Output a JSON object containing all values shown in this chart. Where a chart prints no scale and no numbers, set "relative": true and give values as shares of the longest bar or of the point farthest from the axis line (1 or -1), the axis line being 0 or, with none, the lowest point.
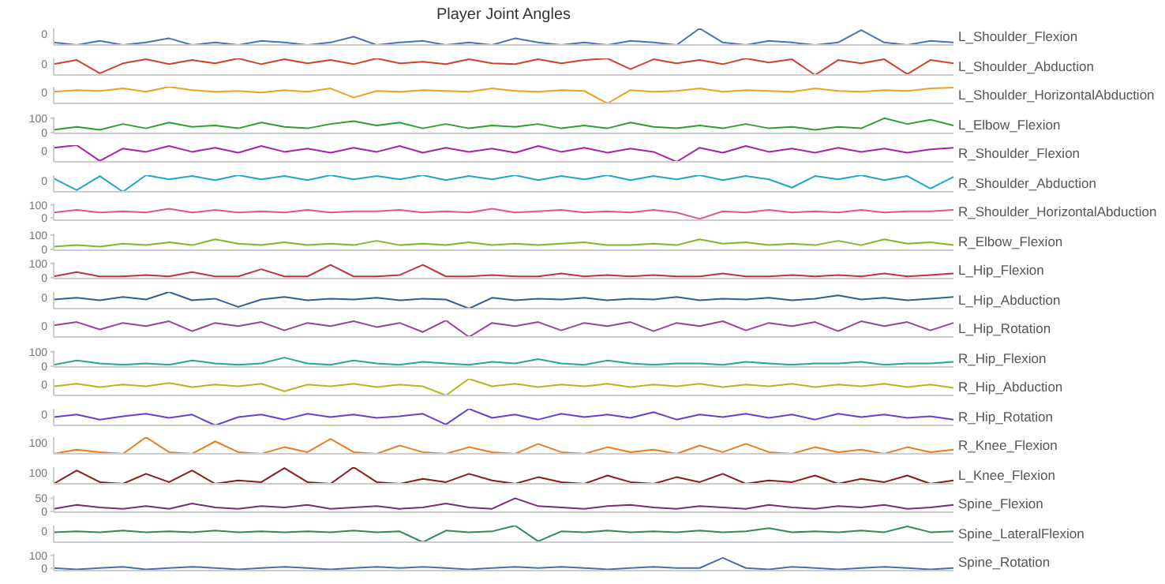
{
  "chart_data": [
    {
      "type": "line",
      "title": "Player Joint Angles",
      "relative": true,
      "annotations": [
        "0"
      ],
      "categories": [
        null,
        null,
        null,
        null,
        null,
        null,
        null,
        null,
        null,
        null,
        null,
        null,
        null,
        null,
        null,
        null,
        null,
        null,
        null,
        null,
        null,
        null,
        null,
        null,
        null,
        null,
        null,
        null,
        null,
        null,
        null,
        null,
        null,
        null,
        null,
        null,
        null,
        null,
        null,
        null
      ],
      "series": [
        {
          "name": "L_Shoulder_Flexion",
          "color": "#4a72b8",
          "values": [
            0.15,
            0,
            0.25,
            0,
            0.15,
            0.4,
            0,
            0.15,
            0,
            0.25,
            0.15,
            0,
            0.15,
            0.5,
            0,
            0.15,
            0.25,
            0,
            0.15,
            0,
            0.4,
            0.15,
            0,
            0.15,
            0,
            0.25,
            0.15,
            0,
            1,
            0.15,
            0,
            0.25,
            0.15,
            0,
            0.15,
            0.9,
            0.15,
            0,
            0.25,
            0.15
          ]
        }
      ]
    },
    {
      "type": "line",
      "relative": true,
      "annotations": [
        "0"
      ],
      "categories": [
        null,
        null,
        null,
        null,
        null,
        null,
        null,
        null,
        null,
        null,
        null,
        null,
        null,
        null,
        null,
        null,
        null,
        null,
        null,
        null,
        null,
        null,
        null,
        null,
        null,
        null,
        null,
        null,
        null,
        null,
        null,
        null,
        null,
        null,
        null,
        null,
        null,
        null,
        null,
        null
      ],
      "series": [
        {
          "name": "L_Shoulder_Abduction",
          "color": "#d0432b",
          "values": [
            0.65,
            0.9,
            0.1,
            0.7,
            0.95,
            0.65,
            0.9,
            0.7,
            1,
            0.65,
            0.95,
            0.7,
            0.9,
            0.65,
            1,
            0.7,
            0.8,
            0.65,
            0.95,
            0.7,
            0.65,
            0.95,
            0.7,
            0.9,
            1,
            0.35,
            0.95,
            0.7,
            0.9,
            0.65,
            1,
            0.75,
            0.95,
            0,
            0.9,
            0.7,
            0.95,
            0.05,
            0.9,
            0.7
          ]
        }
      ]
    },
    {
      "type": "line",
      "relative": true,
      "annotations": [
        "0"
      ],
      "categories": [
        null,
        null,
        null,
        null,
        null,
        null,
        null,
        null,
        null,
        null,
        null,
        null,
        null,
        null,
        null,
        null,
        null,
        null,
        null,
        null,
        null,
        null,
        null,
        null,
        null,
        null,
        null,
        null,
        null,
        null,
        null,
        null,
        null,
        null,
        null,
        null,
        null,
        null,
        null,
        null
      ],
      "series": [
        {
          "name": "L_Shoulder_HorizontalAbduction",
          "color": "#f0a020",
          "values": [
            0.7,
            0.8,
            0.75,
            0.9,
            0.7,
            1,
            0.8,
            0.7,
            0.75,
            0.65,
            0.8,
            0.7,
            0.9,
            0.35,
            0.75,
            0.7,
            0.8,
            0.75,
            0.7,
            0.9,
            0.75,
            0.7,
            0.8,
            0.75,
            0,
            0.8,
            0.7,
            0.75,
            0.9,
            0.7,
            0.8,
            0.75,
            0.7,
            0.9,
            0.75,
            0.7,
            0.8,
            0.75,
            0.9,
            0.95
          ]
        }
      ]
    },
    {
      "type": "line",
      "ylim": [
        -5,
        110
      ],
      "yticks": [
        0,
        100
      ],
      "categories": [
        null,
        null,
        null,
        null,
        null,
        null,
        null,
        null,
        null,
        null,
        null,
        null,
        null,
        null,
        null,
        null,
        null,
        null,
        null,
        null,
        null,
        null,
        null,
        null,
        null,
        null,
        null,
        null,
        null,
        null,
        null,
        null,
        null,
        null,
        null,
        null,
        null,
        null,
        null,
        null
      ],
      "series": [
        {
          "name": "L_Elbow_Flexion",
          "color": "#2ca02c",
          "values": [
            20,
            40,
            20,
            60,
            30,
            70,
            40,
            50,
            30,
            70,
            40,
            30,
            60,
            80,
            50,
            70,
            30,
            60,
            30,
            50,
            40,
            60,
            30,
            50,
            30,
            70,
            40,
            30,
            50,
            30,
            60,
            30,
            40,
            20,
            40,
            30,
            100,
            60,
            90,
            50
          ]
        }
      ]
    },
    {
      "type": "line",
      "relative": true,
      "annotations": [
        "0"
      ],
      "categories": [
        null,
        null,
        null,
        null,
        null,
        null,
        null,
        null,
        null,
        null,
        null,
        null,
        null,
        null,
        null,
        null,
        null,
        null,
        null,
        null,
        null,
        null,
        null,
        null,
        null,
        null,
        null,
        null,
        null,
        null,
        null,
        null,
        null,
        null,
        null,
        null,
        null,
        null,
        null,
        null
      ],
      "series": [
        {
          "name": "R_Shoulder_Flexion",
          "color": "#a822a8",
          "values": [
            0.85,
            1,
            0.05,
            0.8,
            0.6,
            0.95,
            0.6,
            0.85,
            0.55,
            0.95,
            0.6,
            0.8,
            0.55,
            0.85,
            0.6,
            0.95,
            0.55,
            0.85,
            0.6,
            0.8,
            0.55,
            0.95,
            0.6,
            0.85,
            0.55,
            0.8,
            0.6,
            0,
            0.85,
            0.55,
            0.95,
            0.6,
            0.8,
            0.55,
            0.85,
            0.6,
            0.8,
            0.55,
            0.75,
            0.85
          ]
        }
      ]
    },
    {
      "type": "line",
      "relative": true,
      "annotations": [
        "0"
      ],
      "categories": [
        null,
        null,
        null,
        null,
        null,
        null,
        null,
        null,
        null,
        null,
        null,
        null,
        null,
        null,
        null,
        null,
        null,
        null,
        null,
        null,
        null,
        null,
        null,
        null,
        null,
        null,
        null,
        null,
        null,
        null,
        null,
        null,
        null,
        null,
        null,
        null,
        null,
        null,
        null,
        null
      ],
      "series": [
        {
          "name": "R_Shoulder_Abduction",
          "color": "#1fa6c8",
          "values": [
            0.8,
            0.1,
            0.95,
            0,
            1,
            0.75,
            0.95,
            0.7,
            1,
            0.75,
            0.95,
            0.7,
            1,
            0.75,
            0.95,
            0.75,
            1,
            0.7,
            0.95,
            0.75,
            1,
            0.7,
            0.95,
            0.75,
            1,
            0.7,
            0.95,
            0.75,
            1,
            0.7,
            0.95,
            0.75,
            0.25,
            0.95,
            0.75,
            1,
            0.7,
            0.95,
            0.2,
            0.9
          ]
        }
      ]
    },
    {
      "type": "line",
      "ylim": [
        -20,
        110
      ],
      "yticks": [
        0,
        100
      ],
      "categories": [
        null,
        null,
        null,
        null,
        null,
        null,
        null,
        null,
        null,
        null,
        null,
        null,
        null,
        null,
        null,
        null,
        null,
        null,
        null,
        null,
        null,
        null,
        null,
        null,
        null,
        null,
        null,
        null,
        null,
        null,
        null,
        null,
        null,
        null,
        null,
        null,
        null,
        null,
        null,
        null
      ],
      "series": [
        {
          "name": "R_Shoulder_HorizontalAbduction",
          "color": "#e0558a",
          "values": [
            40,
            60,
            40,
            50,
            40,
            70,
            40,
            60,
            40,
            50,
            40,
            60,
            40,
            50,
            50,
            60,
            40,
            50,
            40,
            70,
            40,
            50,
            60,
            40,
            50,
            40,
            60,
            40,
            -10,
            50,
            40,
            60,
            40,
            50,
            40,
            60,
            40,
            50,
            50,
            60
          ]
        }
      ]
    },
    {
      "type": "line",
      "ylim": [
        -5,
        110
      ],
      "yticks": [
        0,
        100
      ],
      "categories": [
        null,
        null,
        null,
        null,
        null,
        null,
        null,
        null,
        null,
        null,
        null,
        null,
        null,
        null,
        null,
        null,
        null,
        null,
        null,
        null,
        null,
        null,
        null,
        null,
        null,
        null,
        null,
        null,
        null,
        null,
        null,
        null,
        null,
        null,
        null,
        null,
        null,
        null,
        null,
        null
      ],
      "series": [
        {
          "name": "R_Elbow_Flexion",
          "color": "#7cb82a",
          "values": [
            20,
            30,
            20,
            40,
            30,
            50,
            30,
            70,
            40,
            30,
            50,
            30,
            40,
            30,
            60,
            30,
            40,
            30,
            50,
            30,
            40,
            30,
            40,
            50,
            30,
            30,
            40,
            30,
            70,
            40,
            50,
            30,
            40,
            30,
            60,
            30,
            70,
            40,
            50,
            30
          ]
        }
      ]
    },
    {
      "type": "line",
      "ylim": [
        -5,
        110
      ],
      "yticks": [
        0,
        100
      ],
      "categories": [
        null,
        null,
        null,
        null,
        null,
        null,
        null,
        null,
        null,
        null,
        null,
        null,
        null,
        null,
        null,
        null,
        null,
        null,
        null,
        null,
        null,
        null,
        null,
        null,
        null,
        null,
        null,
        null,
        null,
        null,
        null,
        null,
        null,
        null,
        null,
        null,
        null,
        null,
        null,
        null
      ],
      "series": [
        {
          "name": "L_Hip_Flexion",
          "color": "#c0343c",
          "values": [
            10,
            40,
            10,
            10,
            20,
            10,
            40,
            10,
            10,
            60,
            10,
            10,
            90,
            10,
            10,
            20,
            90,
            10,
            10,
            20,
            10,
            10,
            30,
            10,
            20,
            10,
            20,
            10,
            10,
            30,
            10,
            10,
            20,
            10,
            20,
            10,
            30,
            10,
            20,
            30
          ]
        }
      ]
    },
    {
      "type": "line",
      "relative": true,
      "annotations": [
        "0"
      ],
      "categories": [
        null,
        null,
        null,
        null,
        null,
        null,
        null,
        null,
        null,
        null,
        null,
        null,
        null,
        null,
        null,
        null,
        null,
        null,
        null,
        null,
        null,
        null,
        null,
        null,
        null,
        null,
        null,
        null,
        null,
        null,
        null,
        null,
        null,
        null,
        null,
        null,
        null,
        null,
        null,
        null
      ],
      "series": [
        {
          "name": "L_Hip_Abduction",
          "color": "#2f5f9a",
          "values": [
            0.55,
            0.65,
            0.5,
            0.7,
            0.55,
            1,
            0.5,
            0.6,
            0.1,
            0.55,
            0.7,
            0.5,
            0.6,
            0.55,
            0.65,
            0.5,
            0.6,
            0.55,
            0,
            0.65,
            0.5,
            0.6,
            0.55,
            0.65,
            0.5,
            0.6,
            0.55,
            0.7,
            0.5,
            0.6,
            0.55,
            0.65,
            0.5,
            0.6,
            0.8,
            0.55,
            0.65,
            0.5,
            0.6,
            0.7
          ]
        }
      ]
    },
    {
      "type": "line",
      "relative": true,
      "annotations": [
        "0"
      ],
      "categories": [
        null,
        null,
        null,
        null,
        null,
        null,
        null,
        null,
        null,
        null,
        null,
        null,
        null,
        null,
        null,
        null,
        null,
        null,
        null,
        null,
        null,
        null,
        null,
        null,
        null,
        null,
        null,
        null,
        null,
        null,
        null,
        null,
        null,
        null,
        null,
        null,
        null,
        null,
        null,
        null
      ],
      "series": [
        {
          "name": "L_Hip_Rotation",
          "color": "#9b3fa0",
          "values": [
            0.7,
            0.9,
            0.45,
            0.85,
            0.65,
            0.95,
            0.35,
            0.85,
            0.65,
            0.9,
            0.4,
            0.85,
            0.65,
            0.95,
            0.6,
            0.85,
            0.3,
            1,
            0,
            0.85,
            0.65,
            0.9,
            0.4,
            0.85,
            0.65,
            0.9,
            0.35,
            0.85,
            0.65,
            0.95,
            0.4,
            0.85,
            0.65,
            0.9,
            0.35,
            0.95,
            0.65,
            0.9,
            0.4,
            0.85
          ]
        }
      ]
    },
    {
      "type": "line",
      "ylim": [
        -5,
        110
      ],
      "yticks": [
        0,
        100
      ],
      "categories": [
        null,
        null,
        null,
        null,
        null,
        null,
        null,
        null,
        null,
        null,
        null,
        null,
        null,
        null,
        null,
        null,
        null,
        null,
        null,
        null,
        null,
        null,
        null,
        null,
        null,
        null,
        null,
        null,
        null,
        null,
        null,
        null,
        null,
        null,
        null,
        null,
        null,
        null,
        null,
        null
      ],
      "series": [
        {
          "name": "R_Hip_Flexion",
          "color": "#29a890",
          "values": [
            10,
            40,
            20,
            10,
            20,
            10,
            40,
            20,
            10,
            20,
            60,
            20,
            10,
            40,
            20,
            10,
            30,
            20,
            10,
            30,
            20,
            50,
            20,
            10,
            40,
            20,
            10,
            20,
            20,
            10,
            30,
            20,
            10,
            20,
            20,
            30,
            10,
            20,
            20,
            30
          ]
        }
      ]
    },
    {
      "type": "line",
      "relative": true,
      "annotations": [
        "0"
      ],
      "categories": [
        null,
        null,
        null,
        null,
        null,
        null,
        null,
        null,
        null,
        null,
        null,
        null,
        null,
        null,
        null,
        null,
        null,
        null,
        null,
        null,
        null,
        null,
        null,
        null,
        null,
        null,
        null,
        null,
        null,
        null,
        null,
        null,
        null,
        null,
        null,
        null,
        null,
        null,
        null,
        null
      ],
      "series": [
        {
          "name": "R_Hip_Abduction",
          "color": "#b5b520",
          "values": [
            0.55,
            0.7,
            0.5,
            0.65,
            0.55,
            0.75,
            0.5,
            0.65,
            0.55,
            0.7,
            0.25,
            0.65,
            0.55,
            0.7,
            0.5,
            0.65,
            0.55,
            0,
            1,
            0.55,
            0.7,
            0.5,
            0.65,
            0.55,
            0.7,
            0.5,
            0.65,
            0.55,
            0.7,
            0.5,
            0.65,
            0.55,
            0.7,
            0.5,
            0.65,
            0.55,
            0.7,
            0.5,
            0.65,
            0.45
          ]
        }
      ]
    },
    {
      "type": "line",
      "relative": true,
      "annotations": [
        "0"
      ],
      "categories": [
        null,
        null,
        null,
        null,
        null,
        null,
        null,
        null,
        null,
        null,
        null,
        null,
        null,
        null,
        null,
        null,
        null,
        null,
        null,
        null,
        null,
        null,
        null,
        null,
        null,
        null,
        null,
        null,
        null,
        null,
        null,
        null,
        null,
        null,
        null,
        null,
        null,
        null,
        null,
        null
      ],
      "series": [
        {
          "name": "R_Hip_Rotation",
          "color": "#6a3fd0",
          "values": [
            0.5,
            0.65,
            0.35,
            0.55,
            0.7,
            0.45,
            0.65,
            0,
            0.5,
            0.65,
            0.35,
            0.7,
            0.5,
            0.65,
            0.45,
            0.55,
            0.7,
            0.05,
            1,
            0.45,
            0.65,
            0.35,
            0.7,
            0.5,
            0.65,
            0.45,
            0.8,
            0.35,
            0.65,
            0.5,
            0.7,
            0.45,
            0.65,
            0.35,
            0.7,
            0.5,
            0.65,
            0.45,
            0.55,
            0.35
          ]
        }
      ]
    },
    {
      "type": "line",
      "relative": true,
      "annotations": [
        "100"
      ],
      "categories": [
        null,
        null,
        null,
        null,
        null,
        null,
        null,
        null,
        null,
        null,
        null,
        null,
        null,
        null,
        null,
        null,
        null,
        null,
        null,
        null,
        null,
        null,
        null,
        null,
        null,
        null,
        null,
        null,
        null,
        null,
        null,
        null,
        null,
        null,
        null,
        null,
        null,
        null,
        null,
        null
      ],
      "series": [
        {
          "name": "R_Knee_Flexion",
          "color": "#e67e22",
          "values": [
            0,
            0.25,
            0.1,
            0,
            1,
            0.1,
            0,
            0.75,
            0.1,
            0,
            0.4,
            0.1,
            0.9,
            0.1,
            0,
            0.5,
            0.1,
            0,
            0.4,
            0.1,
            0,
            0.6,
            0.1,
            0,
            0.4,
            0.1,
            0.25,
            0,
            0.5,
            0.1,
            0.6,
            0.1,
            0,
            0.4,
            0.1,
            0.25,
            0,
            0.4,
            0.1,
            0.25
          ]
        }
      ]
    },
    {
      "type": "line",
      "relative": true,
      "annotations": [
        "100"
      ],
      "categories": [
        null,
        null,
        null,
        null,
        null,
        null,
        null,
        null,
        null,
        null,
        null,
        null,
        null,
        null,
        null,
        null,
        null,
        null,
        null,
        null,
        null,
        null,
        null,
        null,
        null,
        null,
        null,
        null,
        null,
        null,
        null,
        null,
        null,
        null,
        null,
        null,
        null,
        null,
        null,
        null
      ],
      "series": [
        {
          "name": "L_Knee_Flexion",
          "color": "#8b1a1a",
          "values": [
            0,
            0.8,
            0.1,
            0,
            0.6,
            0.1,
            0.8,
            0,
            0.2,
            0.1,
            0.95,
            0.1,
            0,
            1,
            0.1,
            0,
            0.3,
            0.1,
            0.6,
            0.2,
            0,
            0.4,
            0.1,
            0,
            0.5,
            0.1,
            0,
            0.4,
            0.1,
            0.6,
            0,
            0.2,
            0.1,
            0.5,
            0,
            0.3,
            0.1,
            0.5,
            0,
            0.2
          ]
        }
      ]
    },
    {
      "type": "line",
      "ylim": [
        -3,
        60
      ],
      "yticks": [
        0,
        50
      ],
      "categories": [
        null,
        null,
        null,
        null,
        null,
        null,
        null,
        null,
        null,
        null,
        null,
        null,
        null,
        null,
        null,
        null,
        null,
        null,
        null,
        null,
        null,
        null,
        null,
        null,
        null,
        null,
        null,
        null,
        null,
        null,
        null,
        null,
        null,
        null,
        null,
        null,
        null,
        null,
        null,
        null
      ],
      "series": [
        {
          "name": "Spine_Flexion",
          "color": "#7a2a7a",
          "values": [
            10,
            25,
            15,
            10,
            20,
            10,
            30,
            15,
            10,
            20,
            15,
            25,
            10,
            15,
            20,
            10,
            15,
            30,
            15,
            10,
            50,
            20,
            15,
            10,
            20,
            25,
            15,
            10,
            20,
            15,
            10,
            25,
            15,
            10,
            20,
            15,
            25,
            10,
            15,
            25
          ]
        }
      ]
    },
    {
      "type": "line",
      "relative": true,
      "annotations": [
        "0"
      ],
      "categories": [
        null,
        null,
        null,
        null,
        null,
        null,
        null,
        null,
        null,
        null,
        null,
        null,
        null,
        null,
        null,
        null,
        null,
        null,
        null,
        null,
        null,
        null,
        null,
        null,
        null,
        null,
        null,
        null,
        null,
        null,
        null,
        null,
        null,
        null,
        null,
        null,
        null,
        null,
        null,
        null
      ],
      "series": [
        {
          "name": "Spine_LateralFlexion",
          "color": "#2e8b57",
          "values": [
            0.6,
            0.65,
            0.6,
            0.7,
            0.6,
            0.65,
            0.6,
            0.7,
            0.6,
            0.65,
            0.6,
            0.65,
            0.6,
            0.7,
            0.6,
            0.65,
            0,
            0.7,
            0.6,
            0.65,
            1,
            0.05,
            0.65,
            0.6,
            0.7,
            0.6,
            0.65,
            0.6,
            0.7,
            0.6,
            0.65,
            0.85,
            0.6,
            0.65,
            0.6,
            0.7,
            0.6,
            0.95,
            0.6,
            0.65
          ]
        }
      ]
    },
    {
      "type": "line",
      "ylim": [
        -20,
        110
      ],
      "yticks": [
        0,
        100
      ],
      "categories": [
        null,
        null,
        null,
        null,
        null,
        null,
        null,
        null,
        null,
        null,
        null,
        null,
        null,
        null,
        null,
        null,
        null,
        null,
        null,
        null,
        null,
        null,
        null,
        null,
        null,
        null,
        null,
        null,
        null,
        null,
        null,
        null,
        null,
        null,
        null,
        null,
        null,
        null,
        null,
        null
      ],
      "series": [
        {
          "name": "Spine_Rotation",
          "color": "#4a6fa5",
          "values": [
            0,
            -10,
            0,
            10,
            -10,
            0,
            10,
            0,
            -10,
            0,
            10,
            0,
            -10,
            0,
            10,
            0,
            10,
            0,
            -10,
            0,
            10,
            0,
            10,
            0,
            -10,
            0,
            10,
            0,
            0,
            80,
            0,
            -10,
            10,
            0,
            -10,
            0,
            10,
            0,
            -10,
            0
          ]
        }
      ]
    }
  ]
}
